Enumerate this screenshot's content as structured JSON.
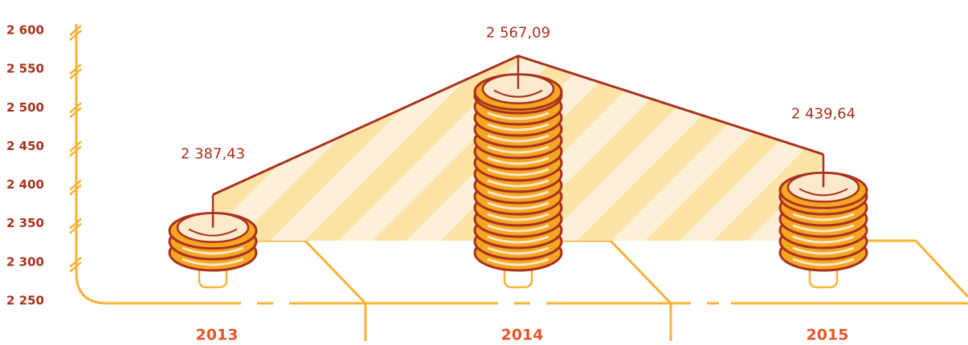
{
  "chart_data": {
    "type": "coin-area",
    "categories": [
      "2013",
      "2014",
      "2015"
    ],
    "values": [
      2387.43,
      2567.09,
      2439.64
    ],
    "value_labels": [
      "2 387,43",
      "2 567,09",
      "2 439,64"
    ],
    "ylim": [
      2250,
      2600
    ],
    "yticks": [
      {
        "value": 2250,
        "label": "2 250"
      },
      {
        "value": 2300,
        "label": "2 300"
      },
      {
        "value": 2350,
        "label": "2 350"
      },
      {
        "value": 2400,
        "label": "2 400"
      },
      {
        "value": 2450,
        "label": "2 450"
      },
      {
        "value": 2500,
        "label": "2 500"
      },
      {
        "value": 2550,
        "label": "2 550"
      },
      {
        "value": 2600,
        "label": "2 600"
      }
    ],
    "color": "#f5a623"
  }
}
